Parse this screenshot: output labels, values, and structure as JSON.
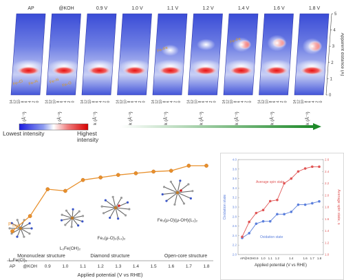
{
  "chart_data": [
    {
      "type": "heatmap",
      "panel_labels": [
        "AP",
        "@KOH",
        "0.9 V",
        "1.0 V",
        "1.1 V",
        "1.2 V",
        "1.4 V",
        "1.6 V",
        "1.8 V"
      ],
      "xlabel": "k (Å⁻¹)",
      "x_ticks": [
        "14",
        "12",
        "10",
        "8",
        "6",
        "4",
        "2",
        "0"
      ],
      "ylabel": "Apparent distance (Å)",
      "y_ticks": [
        "0",
        "1",
        "2",
        "3",
        "4",
        "5"
      ],
      "ylim": [
        0,
        5
      ],
      "annotations": {
        "AP": [
          "Fe–Cl",
          "Fe–N"
        ],
        "@KOH": [
          "Fe–N",
          "Fe–O"
        ],
        "1.1 V": [
          "Fe–Fe"
        ],
        "1.4 V": [
          "Fe–Fe"
        ]
      },
      "colorbar": {
        "low_label": "Lowest intensity",
        "high_label": "Highest intensity"
      }
    },
    {
      "type": "line",
      "series": [
        {
          "name": "P_Total"
        }
      ],
      "x": [
        "AP",
        "@KOH",
        "0.9",
        "1.0",
        "1.1",
        "1.2",
        "1.3",
        "1.4",
        "1.5",
        "1.6",
        "1.7",
        "1.8"
      ],
      "values": [
        0.18,
        0.36,
        0.68,
        0.66,
        0.79,
        0.82,
        0.85,
        0.87,
        0.89,
        0.9,
        0.96,
        0.96
      ],
      "xlabel": "Applied potential (V vs RHE)",
      "structure_regions": [
        "Mononuclear structure",
        "Diamond structure",
        "Open-core structure"
      ],
      "structures": [
        "L₂Fe(Cl)₂",
        "L₂Fe(OH)₂",
        "Fe₂(μ-O)₂(L₂)₂",
        "Fe₂(μ-O)(μ-OH)(L₂)₂"
      ],
      "ptotal_label": "P",
      "ptotal_sub": "Total"
    },
    {
      "type": "line",
      "x": [
        "AP",
        "@KOH",
        "0.9",
        "1.0",
        "1.1",
        "1.2",
        "1.3",
        "1.4",
        "1.5",
        "1.6",
        "1.7",
        "1.8"
      ],
      "xlabel": "Applied potential (V vs RHE)",
      "left_axis": {
        "label": "Oxidation state",
        "ylim": [
          2.0,
          4.0
        ],
        "ticks": [
          "2.0",
          "2.2",
          "2.4",
          "2.6",
          "2.8",
          "3.0",
          "3.2",
          "3.4",
          "3.6",
          "3.8",
          "4.0"
        ]
      },
      "right_axis": {
        "label": "Average spin state, s",
        "ylim": [
          1.0,
          2.6
        ],
        "ticks": [
          "1.0",
          "1.2",
          "1.4",
          "1.6",
          "1.8",
          "2.0",
          "2.2",
          "2.4",
          "2.6"
        ]
      },
      "series": [
        {
          "name": "Oxidation state",
          "axis": "left",
          "color": "#5b7fdc",
          "values": [
            2.35,
            2.45,
            2.65,
            2.7,
            2.7,
            2.85,
            2.85,
            2.9,
            3.05,
            3.05,
            3.08,
            3.12
          ]
        },
        {
          "name": "Average spin state",
          "axis": "right",
          "color": "#e05555",
          "values": [
            1.3,
            1.55,
            1.7,
            1.75,
            1.9,
            1.92,
            2.2,
            2.28,
            2.4,
            2.45,
            2.48,
            2.48
          ]
        }
      ]
    }
  ]
}
